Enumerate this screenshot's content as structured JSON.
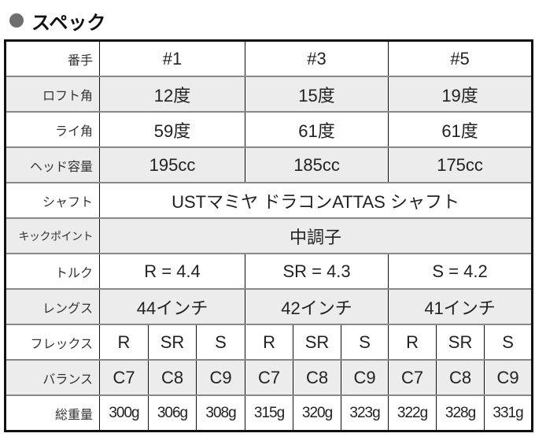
{
  "section": {
    "title": "スペック",
    "bullet_color": "#6e6e6e"
  },
  "colors": {
    "gray_row": "#ececec",
    "border": "#111111"
  },
  "table": {
    "rows": [
      {
        "label": "番手",
        "cells": [
          "#1",
          "#3",
          "#5"
        ],
        "span": 3,
        "gray": false
      },
      {
        "label": "ロフト角",
        "cells": [
          "12度",
          "15度",
          "19度"
        ],
        "span": 3,
        "gray": true
      },
      {
        "label": "ライ角",
        "cells": [
          "59度",
          "61度",
          "61度"
        ],
        "span": 3,
        "gray": false
      },
      {
        "label": "ヘッド容量",
        "cells": [
          "195cc",
          "185cc",
          "175cc"
        ],
        "span": 3,
        "gray": true
      },
      {
        "label": "シャフト",
        "cells": [
          "USTマミヤ ドラコンATTAS シャフト"
        ],
        "span": 9,
        "gray": false
      },
      {
        "label": "キックポイント",
        "cells": [
          "中調子"
        ],
        "span": 9,
        "gray": true
      },
      {
        "label": "トルク",
        "cells": [
          "R = 4.4",
          "SR = 4.3",
          "S = 4.2"
        ],
        "span": 3,
        "gray": false
      },
      {
        "label": "レングス",
        "cells": [
          "44インチ",
          "42インチ",
          "41インチ"
        ],
        "span": 3,
        "gray": true
      },
      {
        "label": "フレックス",
        "cells": [
          "R",
          "SR",
          "S",
          "R",
          "SR",
          "S",
          "R",
          "SR",
          "S"
        ],
        "span": 1,
        "gray": false
      },
      {
        "label": "バランス",
        "cells": [
          "C7",
          "C8",
          "C9",
          "C7",
          "C8",
          "C9",
          "C7",
          "C8",
          "C9"
        ],
        "span": 1,
        "gray": true
      },
      {
        "label": "総重量",
        "cells": [
          "300g",
          "306g",
          "308g",
          "315g",
          "320g",
          "323g",
          "322g",
          "328g",
          "331g"
        ],
        "span": 1,
        "gray": false
      }
    ]
  }
}
